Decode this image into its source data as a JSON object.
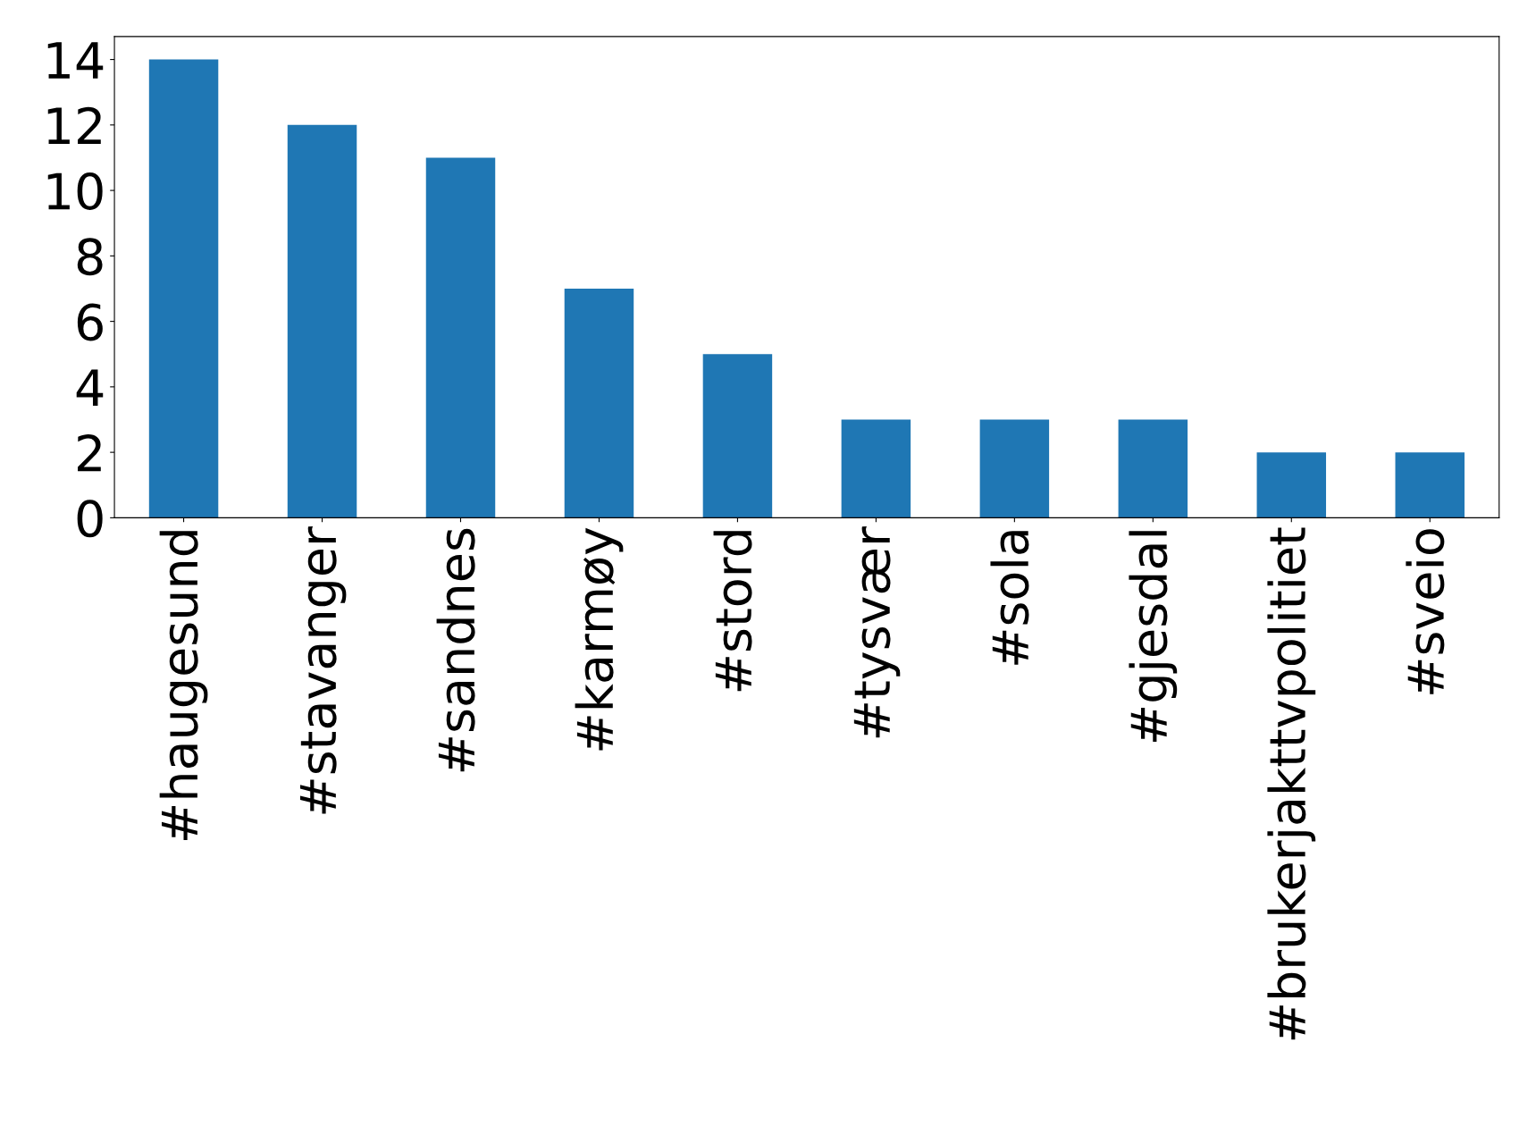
{
  "chart_data": {
    "type": "bar",
    "categories": [
      "#haugesund",
      "#stavanger",
      "#sandnes",
      "#karmøy",
      "#stord",
      "#tysvær",
      "#sola",
      "#gjesdal",
      "#brukerjakttvpolitiet",
      "#sveio"
    ],
    "values": [
      14,
      12,
      11,
      7,
      5,
      3,
      3,
      3,
      2,
      2
    ],
    "color": "#1f77b4",
    "ylim": [
      0,
      14.7
    ],
    "yticks": [
      0,
      2,
      4,
      6,
      8,
      10,
      12,
      14
    ],
    "grid": false,
    "legend": false
  }
}
